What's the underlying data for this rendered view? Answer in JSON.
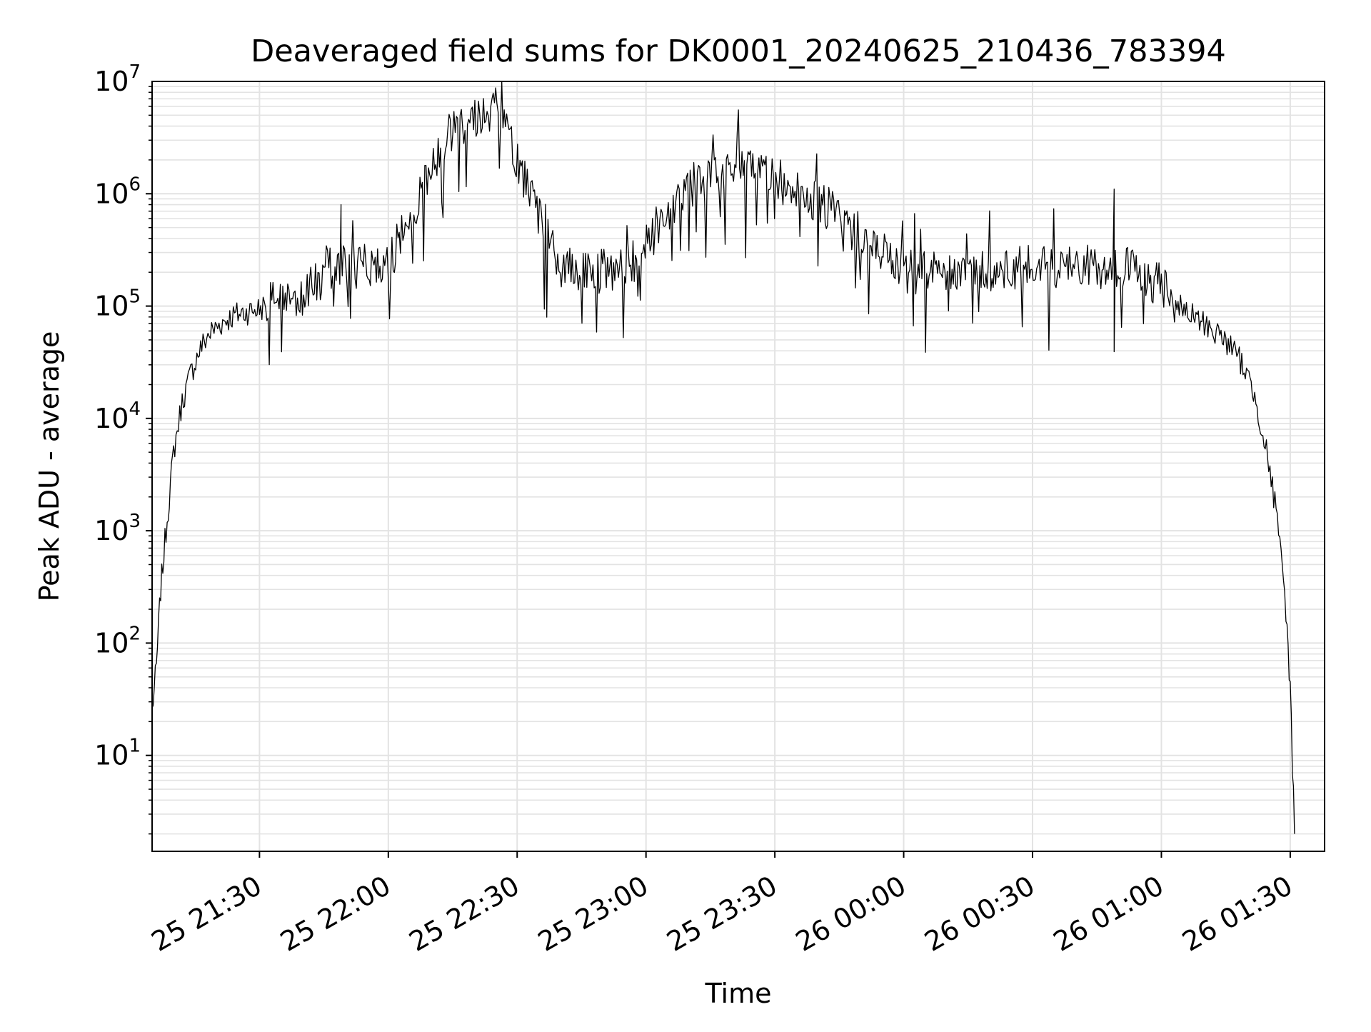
{
  "chart_data": {
    "type": "line",
    "title": "Deaveraged field sums for DK0001_20240625_210436_783394",
    "xlabel": "Time",
    "ylabel": "Peak ADU - average",
    "x_scale": "time",
    "y_scale": "log",
    "xlim": [
      "2024-06-25 21:05",
      "2024-06-26 01:38"
    ],
    "ylim": [
      1.4,
      10000000
    ],
    "x_tick_labels": [
      "25 21:30",
      "25 22:00",
      "25 22:30",
      "25 23:00",
      "25 23:30",
      "26 00:00",
      "26 00:30",
      "26 01:00",
      "26 01:30"
    ],
    "x_tick_times": [
      "2024-06-25 21:30",
      "2024-06-25 22:00",
      "2024-06-25 22:30",
      "2024-06-25 23:00",
      "2024-06-25 23:30",
      "2024-06-26 00:00",
      "2024-06-26 00:30",
      "2024-06-26 01:00",
      "2024-06-26 01:30"
    ],
    "y_ticks": [
      {
        "value": 10,
        "base": "10",
        "exp": "1"
      },
      {
        "value": 100,
        "base": "10",
        "exp": "2"
      },
      {
        "value": 1000,
        "base": "10",
        "exp": "3"
      },
      {
        "value": 10000,
        "base": "10",
        "exp": "4"
      },
      {
        "value": 100000,
        "base": "10",
        "exp": "5"
      },
      {
        "value": 1000000,
        "base": "10",
        "exp": "6"
      },
      {
        "value": 10000000,
        "base": "10",
        "exp": "7"
      }
    ],
    "grid": true,
    "line_color": "#000000",
    "grid_color": "#e3e3e3",
    "series": [
      {
        "x": [
          "2024-06-25 21:05",
          "2024-06-25 21:06",
          "2024-06-25 21:07",
          "2024-06-25 21:08",
          "2024-06-25 21:09",
          "2024-06-25 21:10",
          "2024-06-25 21:12",
          "2024-06-25 21:14",
          "2024-06-25 21:16",
          "2024-06-25 21:18",
          "2024-06-25 21:20",
          "2024-06-25 21:22",
          "2024-06-25 21:25",
          "2024-06-25 21:30",
          "2024-06-25 21:40",
          "2024-06-25 21:45",
          "2024-06-25 21:49",
          "2024-06-25 21:52",
          "2024-06-25 21:55",
          "2024-06-25 22:00",
          "2024-06-25 22:15",
          "2024-06-25 22:25",
          "2024-06-25 22:40",
          "2024-06-25 22:55",
          "2024-06-25 23:10",
          "2024-06-25 23:26",
          "2024-06-25 23:42",
          "2024-06-26 00:00",
          "2024-06-26 00:20",
          "2024-06-26 00:40",
          "2024-06-26 00:49",
          "2024-06-26 00:55",
          "2024-06-26 01:00",
          "2024-06-26 01:05",
          "2024-06-26 01:10",
          "2024-06-26 01:15",
          "2024-06-26 01:19",
          "2024-06-26 01:22",
          "2024-06-26 01:25",
          "2024-06-26 01:27",
          "2024-06-26 01:29",
          "2024-06-26 01:30",
          "2024-06-26 01:31"
        ],
        "y": [
          25,
          60,
          300,
          800,
          2000,
          5000,
          14000,
          25000,
          40000,
          55000,
          65000,
          75000,
          85000,
          95000,
          130000,
          170000,
          800000,
          200000,
          230000,
          240000,
          4000000,
          6000000,
          210000,
          200000,
          1200000,
          1700000,
          750000,
          200000,
          210000,
          230000,
          1100000,
          200000,
          150000,
          90000,
          70000,
          50000,
          30000,
          15000,
          4000,
          1200,
          200,
          40,
          2
        ]
      }
    ]
  }
}
